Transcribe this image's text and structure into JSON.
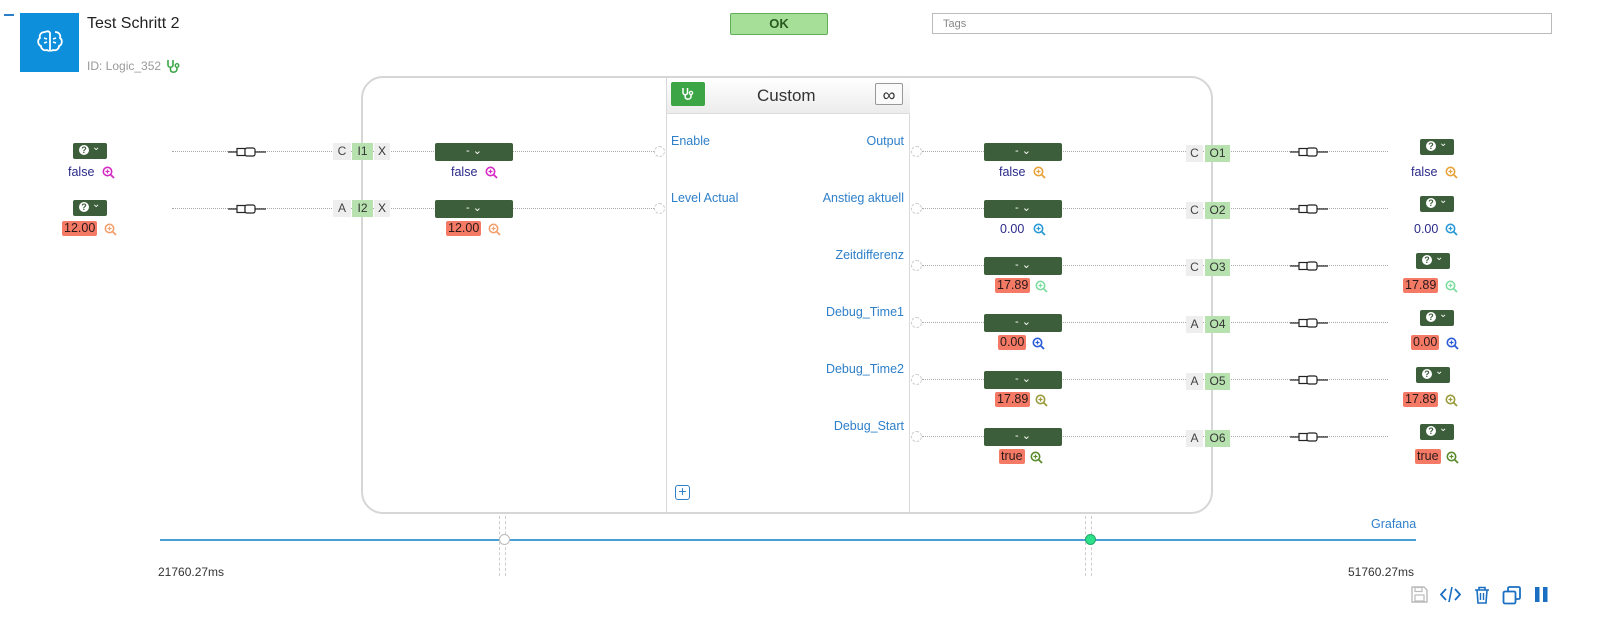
{
  "header": {
    "title": "Test Schritt 2",
    "id_label": "ID: Logic_352",
    "status": "OK",
    "tags_placeholder": "Tags",
    "logo_icon": "brain-icon",
    "accent": "#0d8fdc"
  },
  "block": {
    "name": "Custom",
    "loop_symbol": "∞",
    "inputs": [
      {
        "label": "Enable",
        "mode": "C",
        "id": "I1",
        "x": "X",
        "dropdown": "-",
        "value": "false",
        "source_value": "false",
        "highlight": false
      },
      {
        "label": "Level Actual",
        "mode": "A",
        "id": "I2",
        "x": "X",
        "dropdown": "-",
        "value": "12.00",
        "source_value": "12.00",
        "highlight": true
      }
    ],
    "outputs": [
      {
        "label": "Output",
        "mode": "C",
        "id": "O1",
        "dropdown": "-",
        "value": "false",
        "target_value": "false",
        "highlight": false
      },
      {
        "label": "Anstieg aktuell",
        "mode": "C",
        "id": "O2",
        "dropdown": "-",
        "value": "0.00",
        "target_value": "0.00",
        "highlight": false
      },
      {
        "label": "Zeitdifferenz",
        "mode": "C",
        "id": "O3",
        "dropdown": "-",
        "value": "17.89",
        "target_value": "17.89",
        "highlight": true
      },
      {
        "label": "Debug_Time1",
        "mode": "A",
        "id": "O4",
        "dropdown": "-",
        "value": "0.00",
        "target_value": "0.00",
        "highlight": true
      },
      {
        "label": "Debug_Time2",
        "mode": "A",
        "id": "O5",
        "dropdown": "-",
        "value": "17.89",
        "target_value": "17.89",
        "highlight": true
      },
      {
        "label": "Debug_Start",
        "mode": "A",
        "id": "O6",
        "dropdown": "-",
        "value": "true",
        "target_value": "true",
        "highlight": true
      }
    ]
  },
  "timeline": {
    "start_label": "21760.27ms",
    "end_label": "51760.27ms",
    "link_label": "Grafana"
  },
  "colors": {
    "dark_green": "#3c5e3a",
    "highlight": "#f57a66",
    "link_blue": "#2e7fc9",
    "ok_green": "#a6df98"
  },
  "toolbar": [
    "save-icon",
    "code-icon",
    "trash-icon",
    "copy-icon",
    "pause-icon"
  ]
}
